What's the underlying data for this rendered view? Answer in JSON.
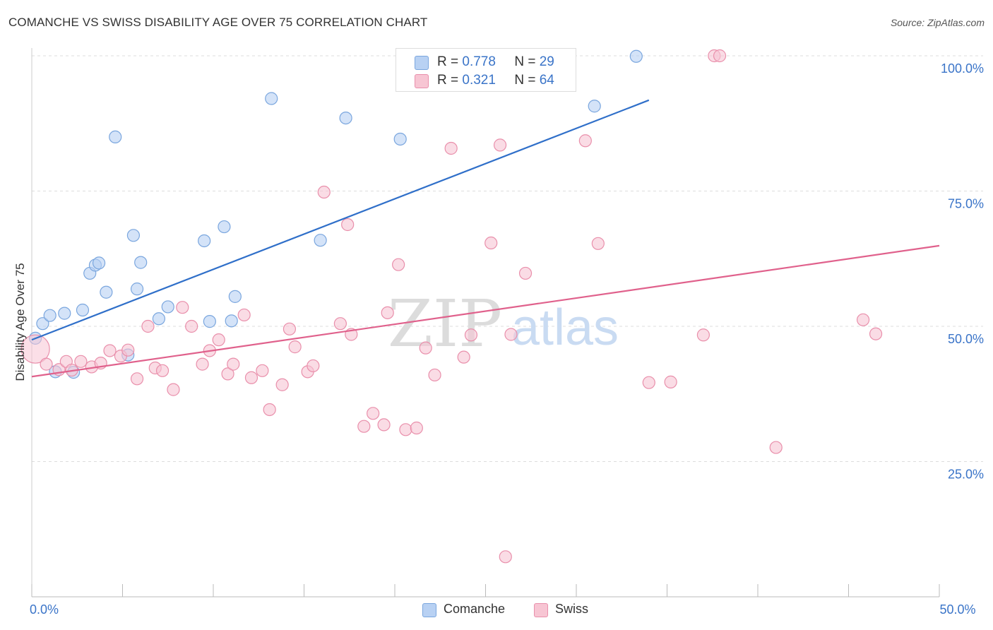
{
  "title": "COMANCHE VS SWISS DISABILITY AGE OVER 75 CORRELATION CHART",
  "source": "Source: ZipAtlas.com",
  "watermark": {
    "zip": "ZIP",
    "atlas": "atlas"
  },
  "legend_stats": [
    {
      "r_label": "R =",
      "r_value": "0.778",
      "n_label": "N =",
      "n_value": "29"
    },
    {
      "r_label": "R =",
      "r_value": "0.321",
      "n_label": "N =",
      "n_value": "64"
    }
  ],
  "colors": {
    "comanche_fill": "#b8d1f3",
    "comanche_stroke": "#7aa6de",
    "comanche_line": "#2f6fc9",
    "swiss_fill": "#f7c5d3",
    "swiss_stroke": "#e98fab",
    "swiss_line": "#e0618c",
    "axis_label": "#3a74c8",
    "grid": "#dddddd"
  },
  "chart_data": {
    "type": "scatter",
    "title": "COMANCHE VS SWISS DISABILITY AGE OVER 75 CORRELATION CHART",
    "xlabel": "",
    "ylabel": "Disability Age Over 75",
    "xlim": [
      0,
      50
    ],
    "ylim": [
      0,
      100
    ],
    "x_tick_labels": [
      {
        "value": 0,
        "label": "0.0%"
      },
      {
        "value": 50,
        "label": "50.0%"
      }
    ],
    "y_tick_labels": [
      {
        "value": 100,
        "label": "100.0%"
      },
      {
        "value": 75,
        "label": "75.0%"
      },
      {
        "value": 50,
        "label": "50.0%"
      },
      {
        "value": 25,
        "label": "25.0%"
      }
    ],
    "grid": true,
    "legend_position": "bottom-center",
    "series": [
      {
        "name": "Comanche",
        "r": 0.778,
        "n": 29,
        "trend": [
          [
            0,
            47.5
          ],
          [
            34.0,
            91.8
          ]
        ],
        "points": [
          [
            0.2,
            47.8
          ],
          [
            0.6,
            50.5
          ],
          [
            1.0,
            52.0
          ],
          [
            1.8,
            52.4
          ],
          [
            2.8,
            53.0
          ],
          [
            1.3,
            41.6
          ],
          [
            2.3,
            41.5
          ],
          [
            5.3,
            44.7
          ],
          [
            4.1,
            56.3
          ],
          [
            3.2,
            59.8
          ],
          [
            3.5,
            61.3
          ],
          [
            3.7,
            61.7
          ],
          [
            5.8,
            56.9
          ],
          [
            6.0,
            61.8
          ],
          [
            7.0,
            51.4
          ],
          [
            7.5,
            53.6
          ],
          [
            5.6,
            66.8
          ],
          [
            9.5,
            65.8
          ],
          [
            10.6,
            68.4
          ],
          [
            9.8,
            50.9
          ],
          [
            11.0,
            51.0
          ],
          [
            11.2,
            55.5
          ],
          [
            4.6,
            85.0
          ],
          [
            13.2,
            92.1
          ],
          [
            15.9,
            65.9
          ],
          [
            17.3,
            88.5
          ],
          [
            20.3,
            84.6
          ],
          [
            31.0,
            90.7
          ],
          [
            33.3,
            99.9
          ]
        ]
      },
      {
        "name": "Swiss",
        "r": 0.321,
        "n": 64,
        "trend": [
          [
            0,
            40.7
          ],
          [
            50.0,
            64.9
          ]
        ],
        "points": [
          [
            0.2,
            45.8
          ],
          [
            0.8,
            43.0
          ],
          [
            1.5,
            42.0
          ],
          [
            1.9,
            43.5
          ],
          [
            2.2,
            41.9
          ],
          [
            2.7,
            43.5
          ],
          [
            3.3,
            42.5
          ],
          [
            3.8,
            43.2
          ],
          [
            4.3,
            45.5
          ],
          [
            4.9,
            44.5
          ],
          [
            5.3,
            45.6
          ],
          [
            5.8,
            40.3
          ],
          [
            6.4,
            50.0
          ],
          [
            6.8,
            42.3
          ],
          [
            7.2,
            41.8
          ],
          [
            7.8,
            38.3
          ],
          [
            8.3,
            53.5
          ],
          [
            8.8,
            50.0
          ],
          [
            9.4,
            43.0
          ],
          [
            9.8,
            45.5
          ],
          [
            10.3,
            47.5
          ],
          [
            10.8,
            41.2
          ],
          [
            11.1,
            43.0
          ],
          [
            11.7,
            52.1
          ],
          [
            12.1,
            40.5
          ],
          [
            12.7,
            41.8
          ],
          [
            13.1,
            34.6
          ],
          [
            13.8,
            39.2
          ],
          [
            14.2,
            49.5
          ],
          [
            14.5,
            46.2
          ],
          [
            15.2,
            41.6
          ],
          [
            15.5,
            42.7
          ],
          [
            16.1,
            74.8
          ],
          [
            17.0,
            50.5
          ],
          [
            17.4,
            68.8
          ],
          [
            17.6,
            48.5
          ],
          [
            18.3,
            31.5
          ],
          [
            18.8,
            33.9
          ],
          [
            19.4,
            31.8
          ],
          [
            19.6,
            52.5
          ],
          [
            20.2,
            61.4
          ],
          [
            20.6,
            30.9
          ],
          [
            21.2,
            31.2
          ],
          [
            21.7,
            46.0
          ],
          [
            22.2,
            41.0
          ],
          [
            23.1,
            82.9
          ],
          [
            23.8,
            44.3
          ],
          [
            24.2,
            48.4
          ],
          [
            25.3,
            65.4
          ],
          [
            25.8,
            83.5
          ],
          [
            26.4,
            48.5
          ],
          [
            26.1,
            7.4
          ],
          [
            27.2,
            59.8
          ],
          [
            30.5,
            84.3
          ],
          [
            31.2,
            65.3
          ],
          [
            34.0,
            39.6
          ],
          [
            35.2,
            39.7
          ],
          [
            37.0,
            48.4
          ],
          [
            37.6,
            100.0
          ],
          [
            37.9,
            100.0
          ],
          [
            45.8,
            51.2
          ],
          [
            46.5,
            48.6
          ],
          [
            41.0,
            27.6
          ],
          [
            27.8,
            100.0
          ]
        ]
      }
    ]
  }
}
